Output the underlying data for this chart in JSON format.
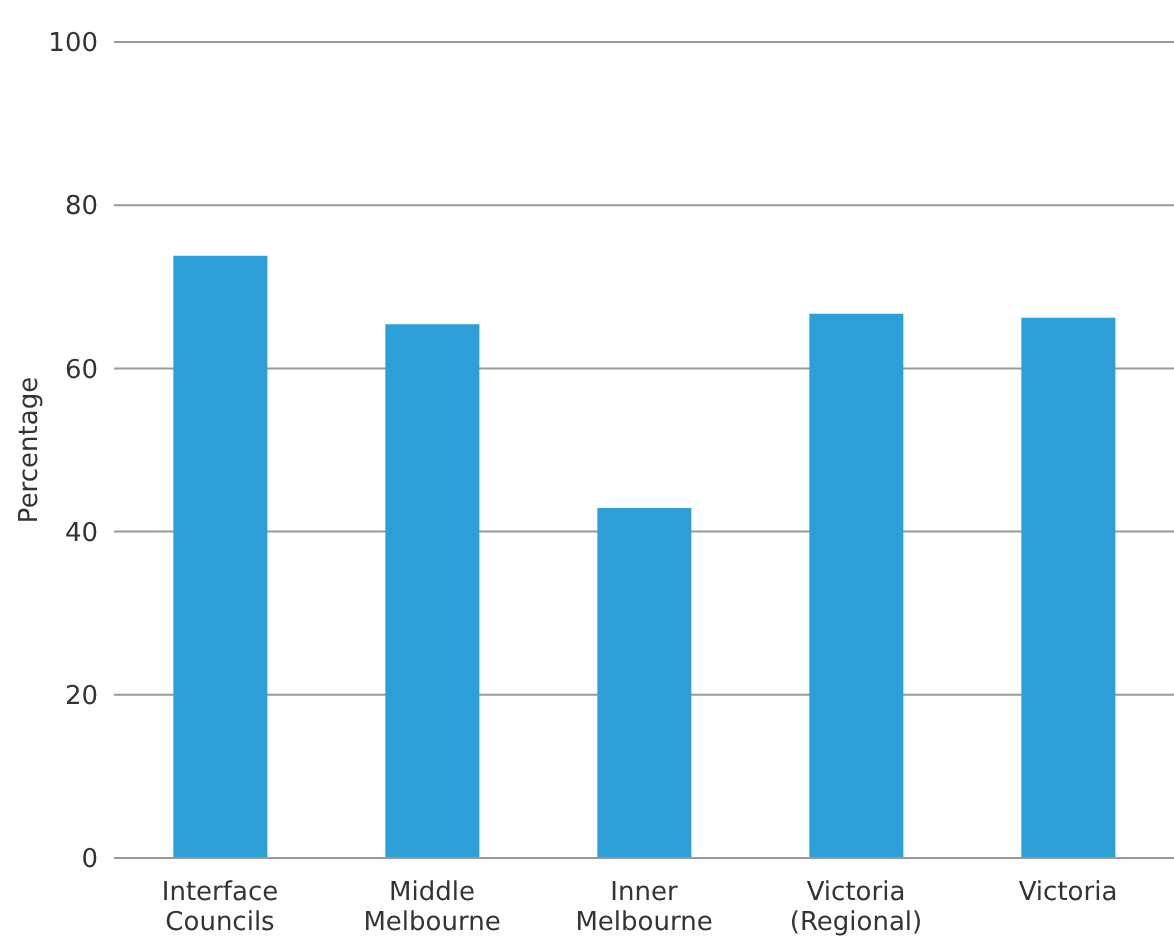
{
  "chart_data": {
    "type": "bar",
    "ylabel": "Percentage",
    "categories": [
      "Interface Councils",
      "Middle Melbourne",
      "Inner Melbourne",
      "Victoria (Regional)",
      "Victoria"
    ],
    "values": [
      73.8,
      65.4,
      42.9,
      66.7,
      66.2
    ],
    "color": "#2b9fd6",
    "ylim": [
      0,
      100
    ],
    "yticks": [
      0,
      20,
      40,
      60,
      80,
      100
    ],
    "grid": "y"
  }
}
